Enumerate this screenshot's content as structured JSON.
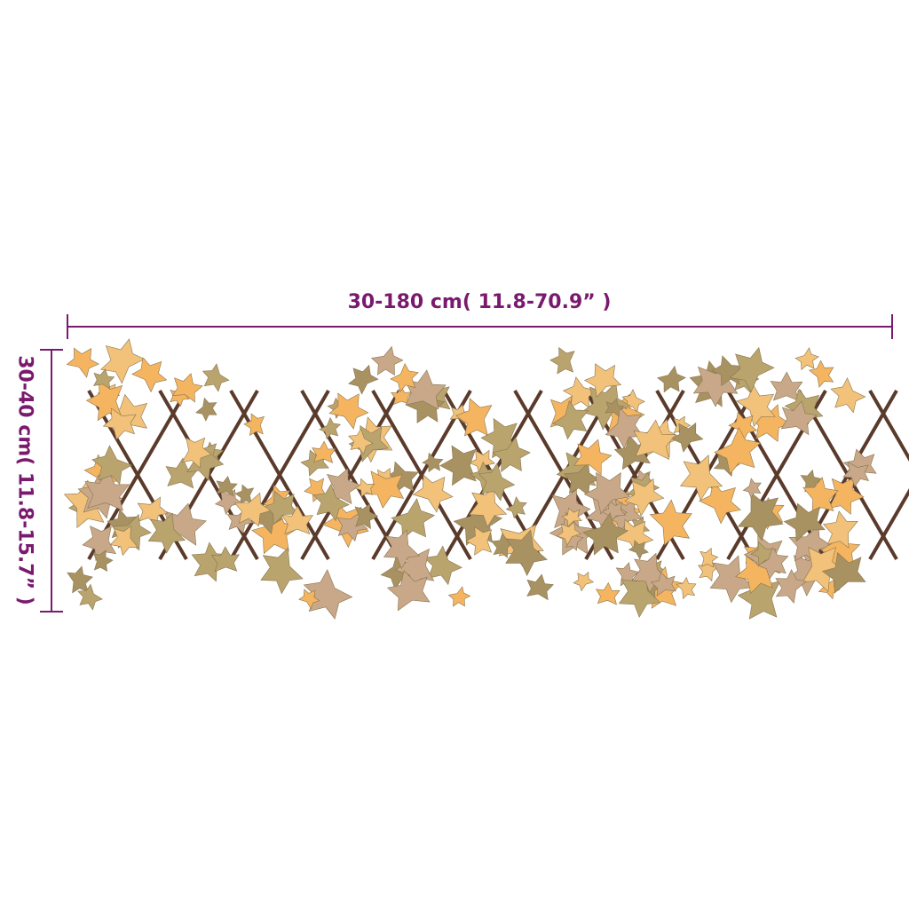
{
  "dimensions": {
    "width_label": "30-180 cm( 11.8-70.9” )",
    "height_label": "30-40 cm( 11.8-15.7” )",
    "line_color": "#7a1a6e"
  },
  "product": {
    "leaf_colors": [
      "#f2c27a",
      "#f5b560",
      "#b9a46e",
      "#a89262",
      "#c8a888"
    ],
    "lattice_color": "#5a3a2a"
  }
}
